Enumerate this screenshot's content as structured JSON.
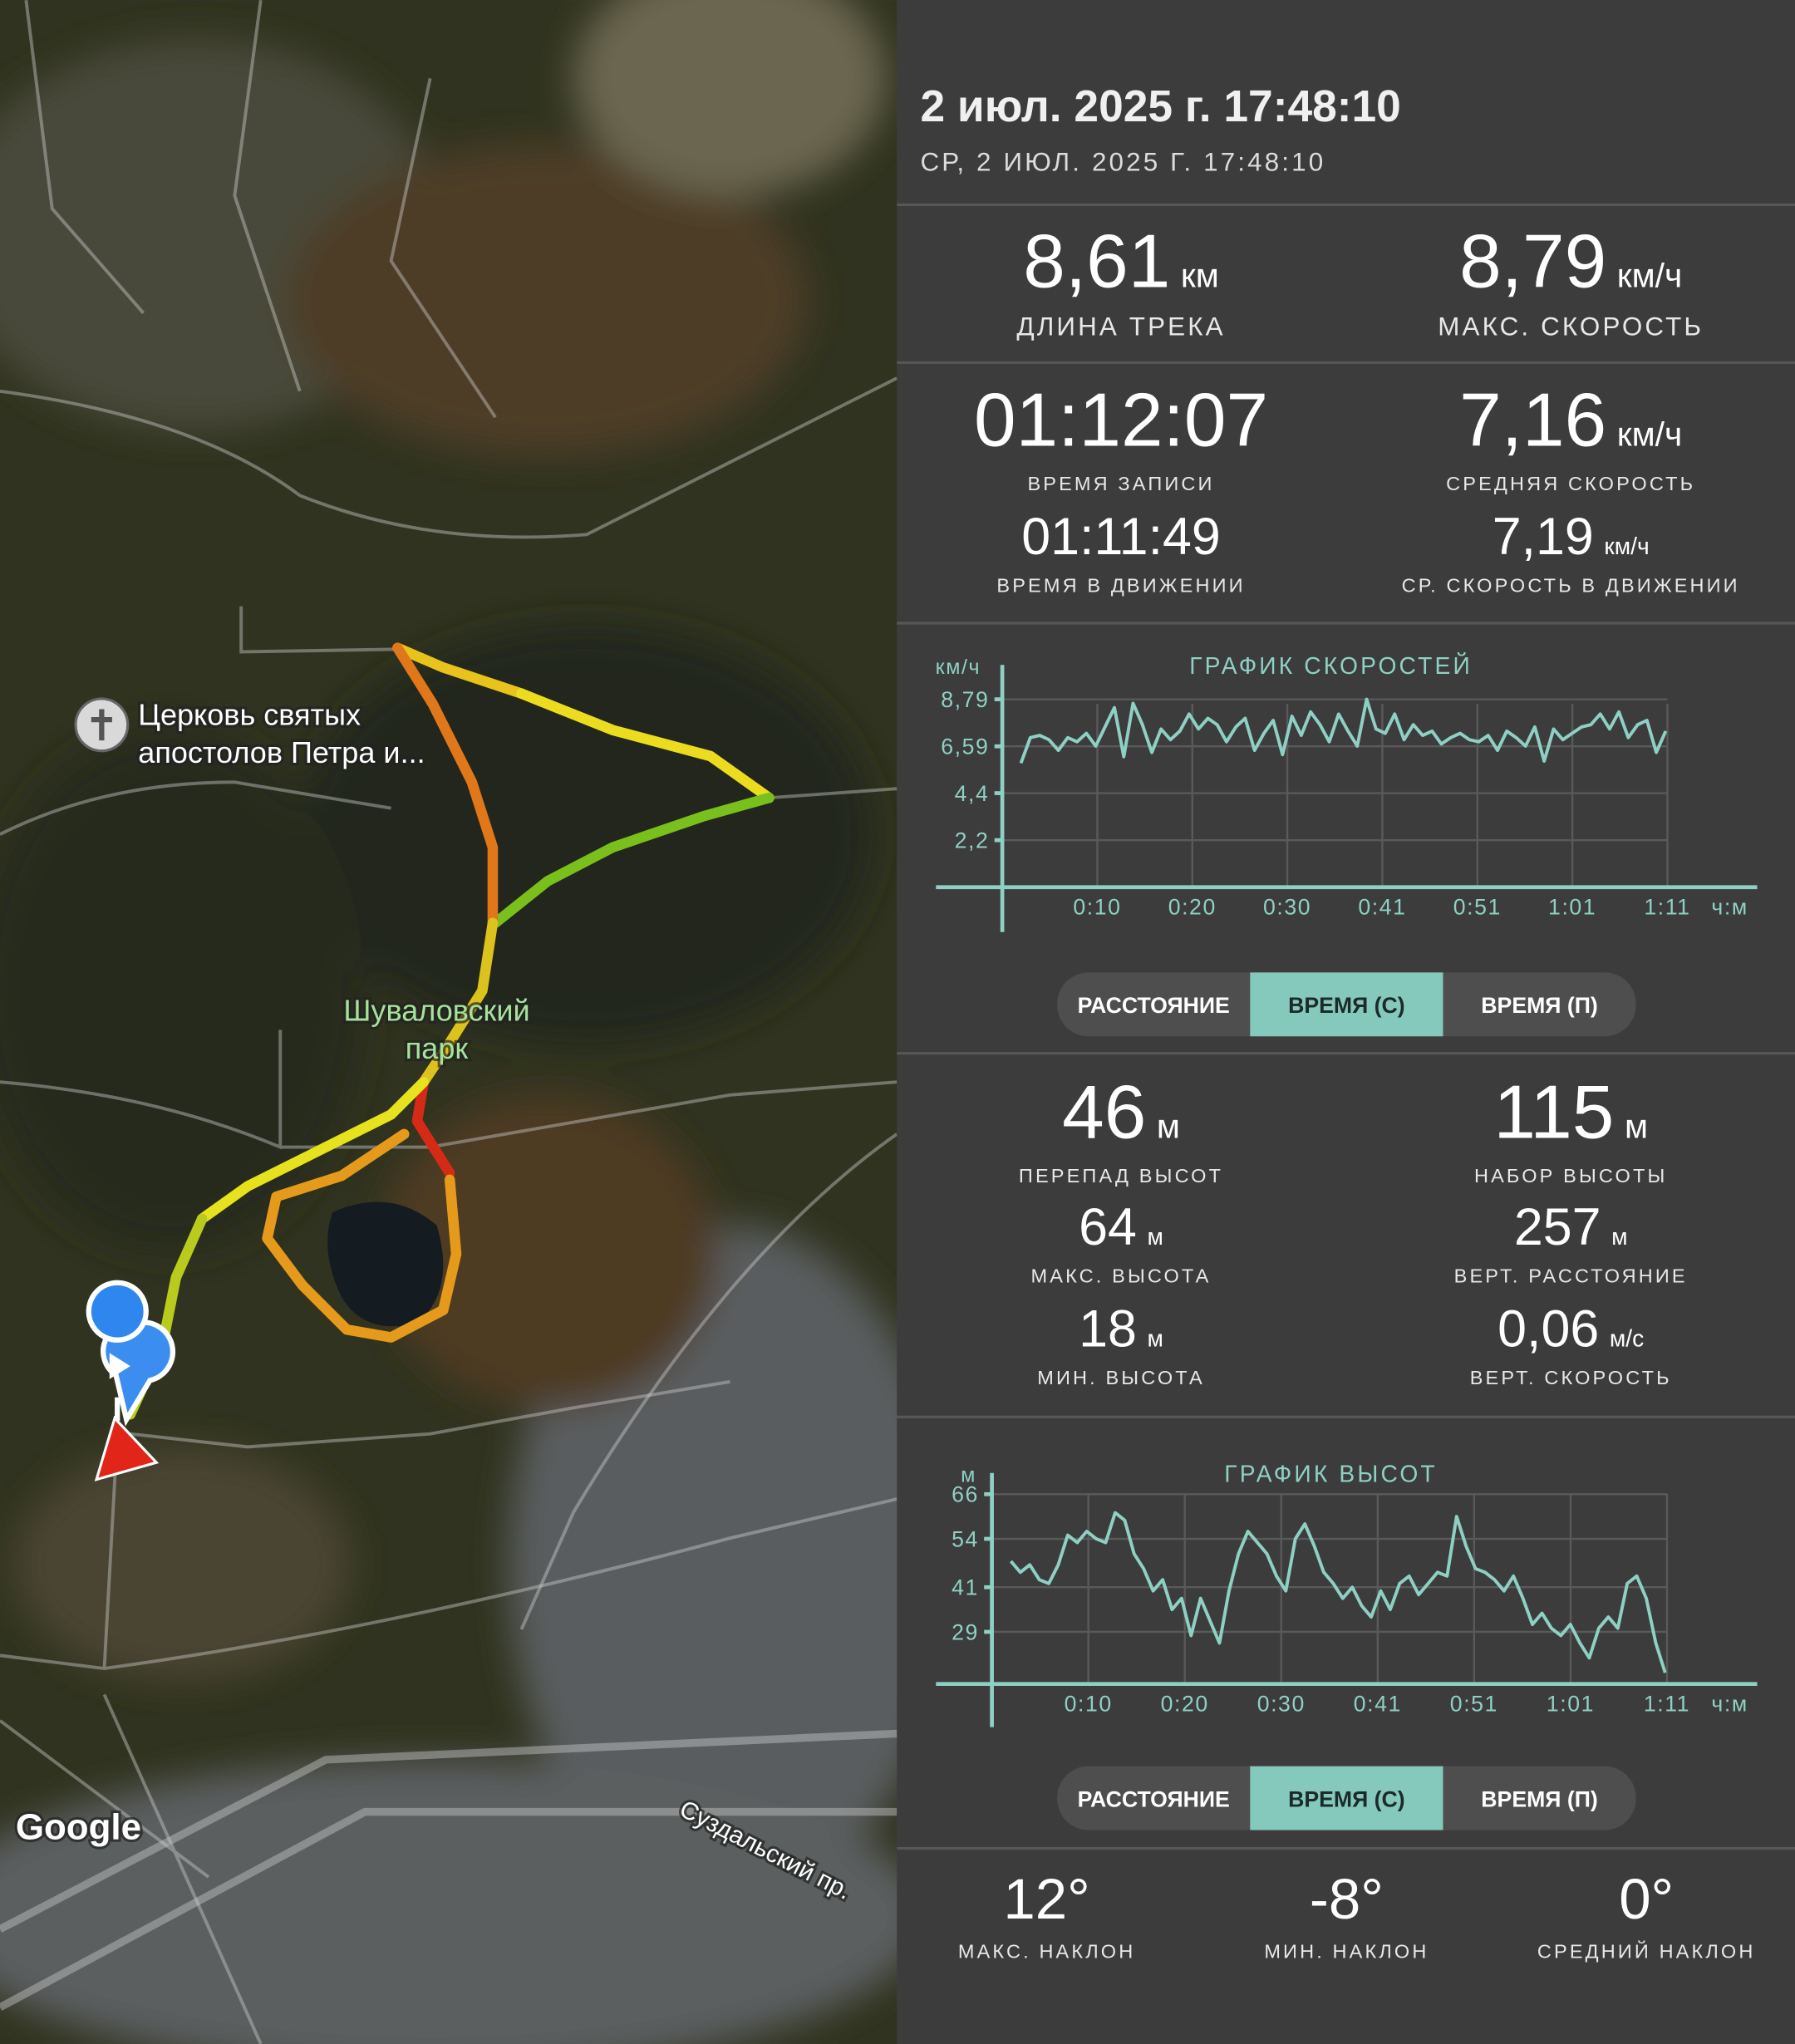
{
  "header": {
    "title": "2 июл. 2025 г. 17:48:10",
    "subtitle": "СР, 2 ИЮЛ. 2025 Г. 17:48:10"
  },
  "map": {
    "poi": [
      "Церковь святых",
      "апостолов Петра и..."
    ],
    "park": [
      "Шуваловский",
      "парк"
    ],
    "attribution": "Google",
    "street": "Суздальский пр."
  },
  "track_stats": [
    {
      "value": "8,61",
      "unit": "км",
      "label": "ДЛИНА ТРЕКА"
    },
    {
      "value": "8,79",
      "unit": "км/ч",
      "label": "МАКС. СКОРОСТЬ"
    },
    {
      "value": "01:12:07",
      "label": "ВРЕМЯ ЗАПИСИ"
    },
    {
      "value": "7,16",
      "unit": "км/ч",
      "label": "СРЕДНЯЯ СКОРОСТЬ"
    },
    {
      "value": "01:11:49",
      "label": "ВРЕМЯ В ДВИЖЕНИИ"
    },
    {
      "value": "7,19",
      "unit": "км/ч",
      "label": "СР. СКОРОСТЬ В ДВИЖЕНИИ"
    }
  ],
  "speed_chart": {
    "type": "line",
    "title": "ГРАФИК СКОРОСТЕЙ",
    "y_label": "км/ч",
    "x_label": "ч:м",
    "color": "#8fd0c4",
    "grid": true,
    "x": [
      2,
      3,
      4,
      5,
      6,
      7,
      8,
      9,
      10,
      11,
      12,
      13,
      14,
      15,
      16,
      17,
      18,
      19,
      20,
      21,
      22,
      23,
      24,
      25,
      26,
      27,
      28,
      29,
      30,
      31,
      32,
      33,
      34,
      35,
      36,
      37,
      38,
      39,
      40,
      41,
      42,
      43,
      44,
      45,
      46,
      47,
      48,
      49,
      50,
      51,
      52,
      53,
      54,
      55,
      56,
      57,
      58,
      59,
      60,
      61,
      62,
      63,
      64,
      65,
      66,
      67,
      68,
      69,
      70,
      71
    ],
    "values": [
      5.8,
      7.0,
      7.1,
      6.9,
      6.4,
      7.0,
      6.8,
      7.2,
      6.6,
      7.5,
      8.4,
      6.1,
      8.6,
      7.6,
      6.3,
      7.4,
      6.9,
      7.3,
      8.1,
      7.4,
      7.9,
      7.6,
      6.8,
      7.5,
      7.9,
      6.4,
      7.2,
      7.8,
      6.2,
      8.0,
      7.1,
      8.2,
      7.6,
      6.8,
      8.1,
      7.3,
      6.6,
      8.79,
      7.4,
      7.2,
      8.1,
      6.9,
      7.6,
      7.1,
      7.3,
      6.7,
      7.0,
      7.2,
      6.9,
      6.8,
      7.1,
      6.4,
      7.3,
      7.0,
      6.6,
      7.5,
      5.9,
      7.4,
      6.9,
      7.2,
      7.5,
      7.6,
      8.1,
      7.4,
      8.2,
      7.0,
      7.6,
      7.8,
      6.3,
      7.3
    ],
    "xlim": [
      -7.1,
      80.8
    ],
    "ylim": [
      -2.1,
      10.4
    ],
    "xticks": [
      {
        "value": 10.17,
        "label": "0:10"
      },
      {
        "value": 20.34,
        "label": "0:20"
      },
      {
        "value": 30.51,
        "label": "0:30"
      },
      {
        "value": 40.68,
        "label": "0:41"
      },
      {
        "value": 50.85,
        "label": "0:51"
      },
      {
        "value": 61.02,
        "label": "1:01"
      },
      {
        "value": 71.19,
        "label": "1:11"
      }
    ],
    "yticks": [
      {
        "value": 8.79,
        "label": "8,79"
      },
      {
        "value": 6.59,
        "label": "6,59"
      },
      {
        "value": 4.4,
        "label": "4,4"
      },
      {
        "value": 2.2,
        "label": "2,2"
      }
    ],
    "modes": [
      "РАССТОЯНИЕ",
      "ВРЕМЯ (С)",
      "ВРЕМЯ (П)"
    ],
    "selected_mode": 1
  },
  "elevation_stats": [
    {
      "value": "46",
      "unit": "м",
      "label": "ПЕРЕПАД ВЫСОТ"
    },
    {
      "value": "115",
      "unit": "м",
      "label": "НАБОР ВЫСОТЫ"
    },
    {
      "value": "64",
      "unit": "м",
      "label": "МАКС. ВЫСОТА"
    },
    {
      "value": "257",
      "unit": "м",
      "label": "ВЕРТ. РАССТОЯНИЕ"
    },
    {
      "value": "18",
      "unit": "м",
      "label": "МИН. ВЫСОТА"
    },
    {
      "value": "0,06",
      "unit": "м/с",
      "label": "ВЕРТ. СКОРОСТЬ"
    }
  ],
  "elevation_chart": {
    "type": "line",
    "title": "ГРАФИК ВЫСОТ",
    "y_label": "м",
    "x_label": "ч:м",
    "color": "#8fd0c4",
    "grid": true,
    "x": [
      2,
      3,
      4,
      5,
      6,
      7,
      8,
      9,
      10,
      11,
      12,
      13,
      14,
      15,
      16,
      17,
      18,
      19,
      20,
      21,
      22,
      23,
      24,
      25,
      26,
      27,
      28,
      29,
      30,
      31,
      32,
      33,
      34,
      35,
      36,
      37,
      38,
      39,
      40,
      41,
      42,
      43,
      44,
      45,
      46,
      47,
      48,
      49,
      50,
      51,
      52,
      53,
      54,
      55,
      56,
      57,
      58,
      59,
      60,
      61,
      62,
      63,
      64,
      65,
      66,
      67,
      68,
      69,
      70,
      71
    ],
    "values": [
      48,
      45,
      47,
      43,
      42,
      47,
      55,
      53,
      56,
      54,
      53,
      61,
      59,
      50,
      46,
      40,
      43,
      35,
      38,
      28,
      38,
      32,
      26,
      40,
      50,
      56,
      53,
      50,
      44,
      40,
      54,
      58,
      52,
      45,
      42,
      38,
      41,
      36,
      33,
      40,
      35,
      42,
      44,
      39,
      42,
      45,
      44,
      60,
      52,
      46,
      45,
      43,
      40,
      44,
      38,
      31,
      34,
      30,
      28,
      31,
      26,
      22,
      30,
      33,
      30,
      42,
      44,
      38,
      26,
      18
    ],
    "xlim": [
      -5.9,
      80.7
    ],
    "ylim": [
      3.4,
      71.7
    ],
    "xticks": [
      {
        "value": 10.17,
        "label": "0:10"
      },
      {
        "value": 20.34,
        "label": "0:20"
      },
      {
        "value": 30.51,
        "label": "0:30"
      },
      {
        "value": 40.68,
        "label": "0:41"
      },
      {
        "value": 50.85,
        "label": "0:51"
      },
      {
        "value": 61.02,
        "label": "1:01"
      },
      {
        "value": 71.19,
        "label": "1:11"
      }
    ],
    "yticks": [
      66,
      54,
      41,
      29
    ],
    "modes": [
      "РАССТОЯНИЕ",
      "ВРЕМЯ (С)",
      "ВРЕМЯ (П)"
    ],
    "selected_mode": 1
  },
  "slope_stats": [
    {
      "value": "12°",
      "label": "МАКС. НАКЛОН"
    },
    {
      "value": "-8°",
      "label": "МИН. НАКЛОН"
    },
    {
      "value": "0°",
      "label": "СРЕДНИЙ НАКЛОН"
    }
  ]
}
